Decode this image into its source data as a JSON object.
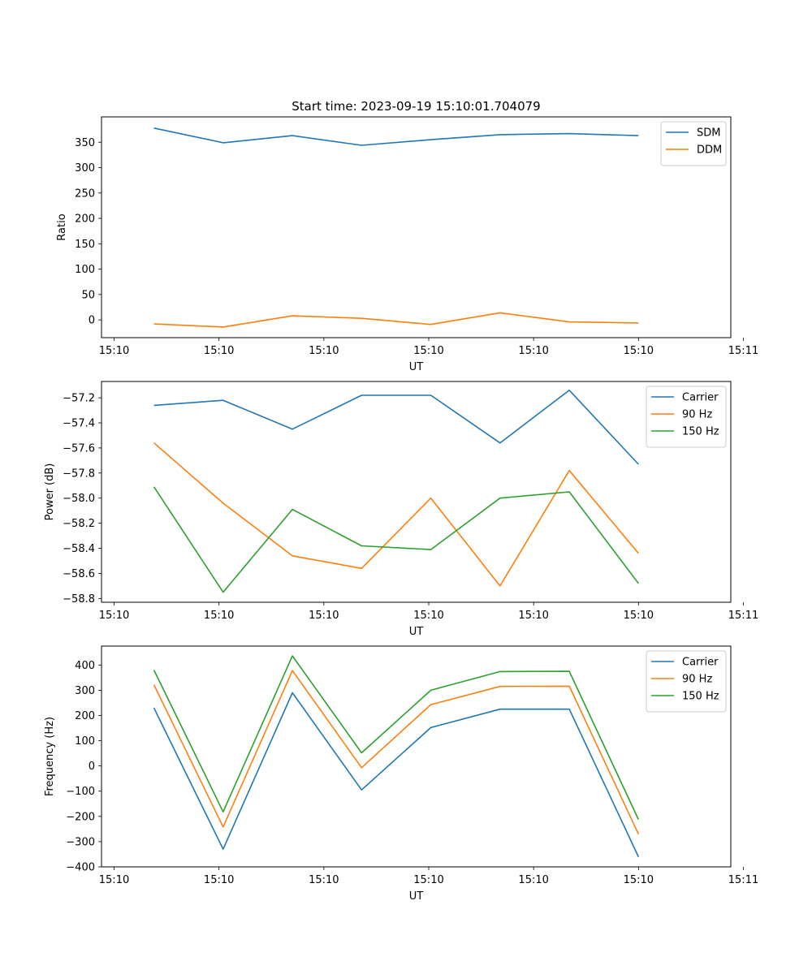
{
  "figure": {
    "title": "Start time: 2023-09-19 15:10:01.704079"
  },
  "chart_data": [
    {
      "type": "line",
      "title": "Start time: 2023-09-19 15:10:01.704079",
      "xlabel": "UT",
      "ylabel": "Ratio",
      "xlim": [
        0,
        6
      ],
      "x": [
        0.5,
        1.16,
        1.82,
        2.48,
        3.14,
        3.8,
        4.46,
        5.12
      ],
      "xticks": [
        0.12,
        1.12,
        2.12,
        3.12,
        4.12,
        5.12,
        6.12
      ],
      "xtick_labels": [
        "15:10",
        "15:10",
        "15:10",
        "15:10",
        "15:10",
        "15:10",
        "15:11"
      ],
      "ylim": [
        -35,
        400
      ],
      "yticks": [
        0,
        50,
        100,
        150,
        200,
        250,
        300,
        350
      ],
      "ytick_labels": [
        "0",
        "50",
        "100",
        "150",
        "200",
        "250",
        "300",
        "350"
      ],
      "legend_position": "top-right",
      "series": [
        {
          "name": "SDM",
          "color": "#1f77b4",
          "values": [
            378,
            349,
            363,
            344,
            355,
            365,
            367,
            363
          ]
        },
        {
          "name": "DDM",
          "color": "#ff7f0e",
          "values": [
            -8,
            -14,
            8,
            3,
            -9,
            14,
            -4,
            -6
          ]
        }
      ]
    },
    {
      "type": "line",
      "title": "",
      "xlabel": "UT",
      "ylabel": "Power (dB)",
      "xlim": [
        0,
        6
      ],
      "x": [
        0.5,
        1.16,
        1.82,
        2.48,
        3.14,
        3.8,
        4.46,
        5.12
      ],
      "xticks": [
        0.12,
        1.12,
        2.12,
        3.12,
        4.12,
        5.12,
        6.12
      ],
      "xtick_labels": [
        "15:10",
        "15:10",
        "15:10",
        "15:10",
        "15:10",
        "15:10",
        "15:11"
      ],
      "ylim": [
        -58.83,
        -57.07
      ],
      "yticks": [
        -58.8,
        -58.6,
        -58.4,
        -58.2,
        -58.0,
        -57.8,
        -57.6,
        -57.4,
        -57.2
      ],
      "ytick_labels": [
        "−58.8",
        "−58.6",
        "−58.4",
        "−58.2",
        "−58.0",
        "−57.8",
        "−57.6",
        "−57.4",
        "−57.2"
      ],
      "legend_position": "top-right",
      "series": [
        {
          "name": "Carrier",
          "color": "#1f77b4",
          "values": [
            -57.26,
            -57.22,
            -57.45,
            -57.18,
            -57.18,
            -57.56,
            -57.14,
            -57.73
          ]
        },
        {
          "name": "90 Hz",
          "color": "#ff7f0e",
          "values": [
            -57.56,
            -58.04,
            -58.46,
            -58.56,
            -58.0,
            -58.7,
            -57.78,
            -58.44
          ]
        },
        {
          "name": "150 Hz",
          "color": "#2ca02c",
          "values": [
            -57.91,
            -58.75,
            -58.09,
            -58.38,
            -58.41,
            -58.0,
            -57.95,
            -58.68
          ]
        }
      ]
    },
    {
      "type": "line",
      "title": "",
      "xlabel": "UT",
      "ylabel": "Frequency (Hz)",
      "xlim": [
        0,
        6
      ],
      "x": [
        0.5,
        1.16,
        1.82,
        2.48,
        3.14,
        3.8,
        4.46,
        5.12
      ],
      "xticks": [
        0.12,
        1.12,
        2.12,
        3.12,
        4.12,
        5.12,
        6.12
      ],
      "xtick_labels": [
        "15:10",
        "15:10",
        "15:10",
        "15:10",
        "15:10",
        "15:10",
        "15:11"
      ],
      "ylim": [
        -400,
        475
      ],
      "yticks": [
        -400,
        -300,
        -200,
        -100,
        0,
        100,
        200,
        300,
        400
      ],
      "ytick_labels": [
        "−400",
        "−300",
        "−200",
        "−100",
        "0",
        "100",
        "200",
        "300",
        "400"
      ],
      "legend_position": "top-right",
      "series": [
        {
          "name": "Carrier",
          "color": "#1f77b4",
          "values": [
            230,
            -330,
            290,
            -95,
            152,
            225,
            225,
            -360
          ]
        },
        {
          "name": "90 Hz",
          "color": "#ff7f0e",
          "values": [
            322,
            -242,
            378,
            -7,
            243,
            315,
            316,
            -270
          ]
        },
        {
          "name": "150 Hz",
          "color": "#2ca02c",
          "values": [
            380,
            -182,
            436,
            52,
            300,
            374,
            375,
            -212
          ]
        }
      ]
    }
  ]
}
